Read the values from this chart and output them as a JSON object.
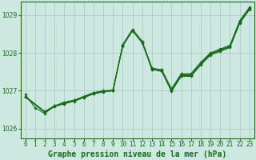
{
  "background_color": "#cce8e0",
  "grid_color": "#aacccc",
  "line_color": "#1a6b1a",
  "xlabel": "Graphe pression niveau de la mer (hPa)",
  "xlabel_fontsize": 7,
  "ylim": [
    1025.75,
    1029.35
  ],
  "xlim": [
    -0.5,
    23.5
  ],
  "yticks": [
    1026,
    1027,
    1028,
    1029
  ],
  "xticks": [
    0,
    1,
    2,
    3,
    4,
    5,
    6,
    7,
    8,
    9,
    10,
    11,
    12,
    13,
    14,
    15,
    16,
    17,
    18,
    19,
    20,
    21,
    22,
    23
  ],
  "series": [
    {
      "x": [
        0,
        1,
        2,
        3,
        4,
        5,
        6,
        7,
        8,
        9,
        10,
        11,
        12,
        13,
        14,
        15,
        16,
        17,
        18,
        19,
        20,
        21,
        22,
        23
      ],
      "y": [
        1026.9,
        1026.55,
        1026.4,
        1026.6,
        1026.65,
        1026.75,
        1026.85,
        1026.95,
        1027.0,
        1027.0,
        1028.2,
        1028.6,
        1028.3,
        1027.55,
        1027.55,
        1027.05,
        1027.45,
        1027.45,
        1027.75,
        1028.0,
        1028.1,
        1028.2,
        1028.85,
        1029.2
      ]
    },
    {
      "x": [
        0,
        2,
        3,
        4,
        5,
        6,
        7,
        8,
        9,
        10,
        11,
        12,
        13,
        14,
        15,
        16,
        17,
        18,
        19,
        20,
        21,
        22,
        23
      ],
      "y": [
        1026.85,
        1026.45,
        1026.6,
        1026.7,
        1026.75,
        1026.82,
        1026.92,
        1026.97,
        1027.0,
        1028.22,
        1028.62,
        1028.3,
        1027.6,
        1027.55,
        1027.02,
        1027.42,
        1027.42,
        1027.72,
        1027.98,
        1028.08,
        1028.18,
        1028.82,
        1029.18
      ]
    },
    {
      "x": [
        0,
        2,
        3,
        4,
        5,
        6,
        7,
        8,
        9,
        10,
        11,
        12,
        13,
        14,
        15,
        16,
        17,
        18,
        19,
        20,
        21,
        22,
        23
      ],
      "y": [
        1026.85,
        1026.45,
        1026.6,
        1026.68,
        1026.74,
        1026.84,
        1026.94,
        1026.99,
        1027.02,
        1028.2,
        1028.6,
        1028.28,
        1027.58,
        1027.53,
        1027.0,
        1027.4,
        1027.4,
        1027.7,
        1027.96,
        1028.06,
        1028.16,
        1028.8,
        1029.16
      ]
    },
    {
      "x": [
        0,
        2,
        3,
        4,
        5,
        6,
        7,
        8,
        9,
        10,
        11,
        12,
        13,
        14,
        15,
        16,
        17,
        18,
        19,
        20,
        21,
        22,
        23
      ],
      "y": [
        1026.83,
        1026.43,
        1026.58,
        1026.66,
        1026.72,
        1026.82,
        1026.92,
        1026.97,
        1027.0,
        1028.18,
        1028.58,
        1028.26,
        1027.56,
        1027.51,
        1026.98,
        1027.38,
        1027.38,
        1027.68,
        1027.94,
        1028.04,
        1028.14,
        1028.78,
        1029.14
      ]
    }
  ]
}
